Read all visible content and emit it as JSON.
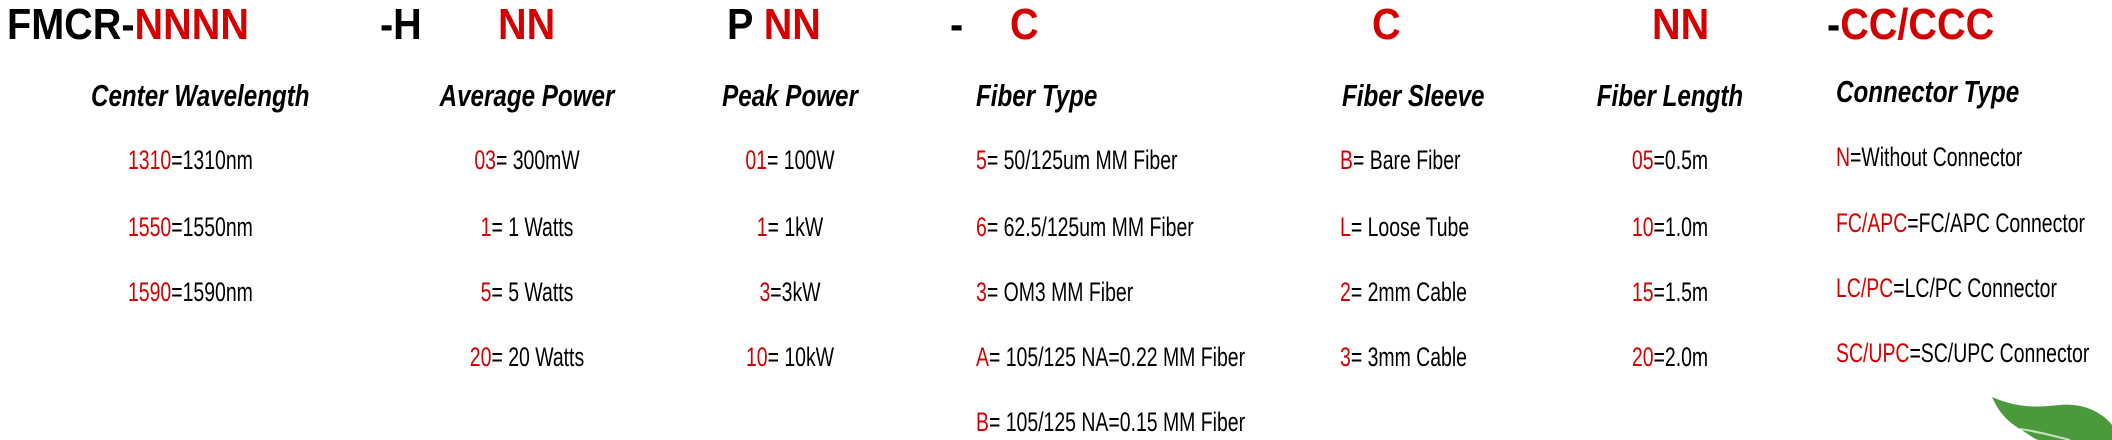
{
  "title": {
    "segments": [
      {
        "black": "FMCR-",
        "red": "NNNN"
      },
      {
        "black": "-H",
        "red": ""
      },
      {
        "black": "",
        "red": "NN"
      },
      {
        "black": "P ",
        "red": "NN"
      },
      {
        "black": "-",
        "red": ""
      },
      {
        "black": "",
        "red": "C"
      },
      {
        "black": "",
        "red": "C"
      },
      {
        "black": "",
        "red": "NN"
      },
      {
        "black": "-",
        "red": "CC/CCC"
      }
    ]
  },
  "colors": {
    "accent": "#d40000",
    "text": "#000000",
    "leaf": "#4a9a3c"
  },
  "columns": {
    "center_wavelength": {
      "header": "Center Wavelength",
      "rows": [
        {
          "code": "1310",
          "desc": "=1310nm"
        },
        {
          "code": "1550",
          "desc": "=1550nm"
        },
        {
          "code": "1590",
          "desc": "=1590nm"
        }
      ]
    },
    "average_power": {
      "header": "Average Power",
      "rows": [
        {
          "code": "03",
          "desc": "= 300mW"
        },
        {
          "code": "1",
          "desc": "= 1 Watts"
        },
        {
          "code": "5",
          "desc": "= 5 Watts"
        },
        {
          "code": "20",
          "desc": "= 20 Watts"
        }
      ]
    },
    "peak_power": {
      "header": "Peak Power",
      "rows": [
        {
          "code": "01",
          "desc": "= 100W"
        },
        {
          "code": "1",
          "desc": "= 1kW"
        },
        {
          "code": "3",
          "desc": "=3kW"
        },
        {
          "code": "10",
          "desc": "= 10kW"
        }
      ]
    },
    "fiber_type": {
      "header": "Fiber Type",
      "rows": [
        {
          "code": "5",
          "desc": "= 50/125um MM Fiber"
        },
        {
          "code": "6",
          "desc": "= 62.5/125um MM Fiber"
        },
        {
          "code": "3",
          "desc": "= OM3 MM Fiber"
        },
        {
          "code": "A",
          "desc": "= 105/125 NA=0.22 MM Fiber"
        },
        {
          "code": "B",
          "desc": "= 105/125 NA=0.15 MM Fiber"
        }
      ]
    },
    "fiber_sleeve": {
      "header": "Fiber Sleeve",
      "rows": [
        {
          "code": "B",
          "desc": "= Bare Fiber"
        },
        {
          "code": "L",
          "desc": "= Loose Tube"
        },
        {
          "code": "2",
          "desc": "= 2mm Cable"
        },
        {
          "code": "3",
          "desc": "= 3mm Cable"
        }
      ]
    },
    "fiber_length": {
      "header": "Fiber Length",
      "rows": [
        {
          "code": "05",
          "desc": "=0.5m"
        },
        {
          "code": "10",
          "desc": "=1.0m"
        },
        {
          "code": "15",
          "desc": "=1.5m"
        },
        {
          "code": "20",
          "desc": "=2.0m"
        }
      ]
    },
    "connector_type": {
      "header": "Connector Type",
      "rows": [
        {
          "code": "N",
          "desc": "=Without Connector"
        },
        {
          "code": "FC/APC",
          "desc": "=FC/APC Connector"
        },
        {
          "code": "LC/PC",
          "desc": "=LC/PC Connector"
        },
        {
          "code": "SC/UPC",
          "desc": "=SC/UPC Connector"
        }
      ]
    }
  }
}
